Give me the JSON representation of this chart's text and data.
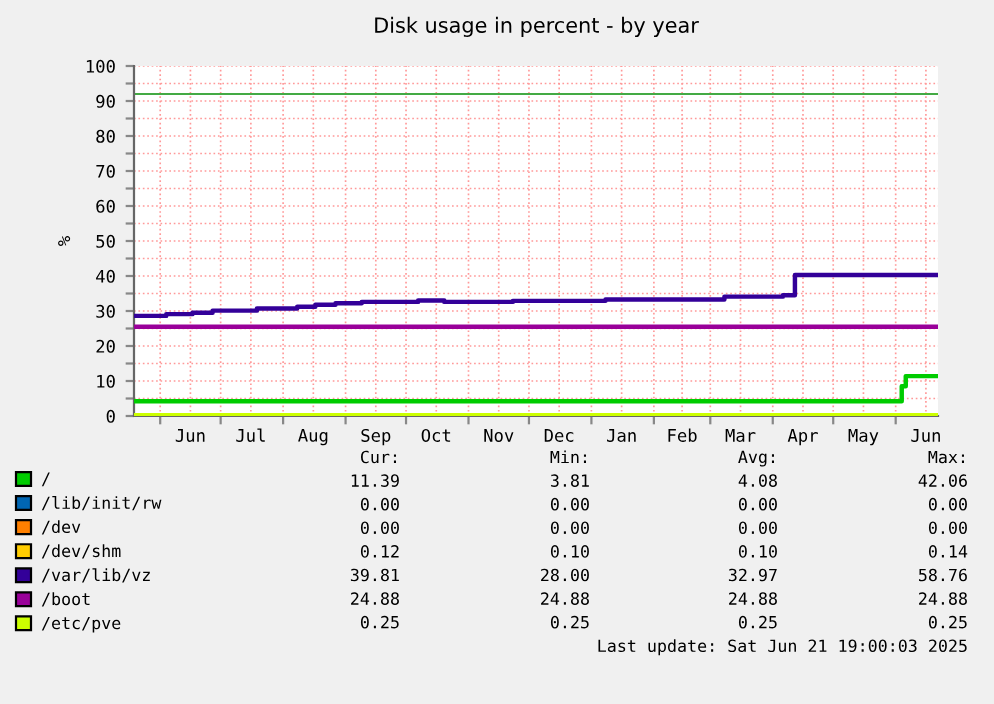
{
  "chart_data": {
    "type": "step",
    "title": "Disk usage in percent - by year",
    "ylabel": "%",
    "xlim": [
      "2024-05-19",
      "2025-06-22"
    ],
    "xticks": [
      {
        "value": "2024-06-01",
        "label": null
      },
      {
        "value": "2024-06-16",
        "label": "Jun"
      },
      {
        "value": "2024-07-01",
        "label": null
      },
      {
        "value": "2024-07-16",
        "label": "Jul"
      },
      {
        "value": "2024-08-01",
        "label": null
      },
      {
        "value": "2024-08-16",
        "label": "Aug"
      },
      {
        "value": "2024-09-01",
        "label": null
      },
      {
        "value": "2024-09-16",
        "label": "Sep"
      },
      {
        "value": "2024-10-01",
        "label": null
      },
      {
        "value": "2024-10-16",
        "label": "Oct"
      },
      {
        "value": "2024-11-01",
        "label": null
      },
      {
        "value": "2024-11-16",
        "label": "Nov"
      },
      {
        "value": "2024-12-01",
        "label": null
      },
      {
        "value": "2024-12-16",
        "label": "Dec"
      },
      {
        "value": "2025-01-01",
        "label": null
      },
      {
        "value": "2025-01-16",
        "label": "Jan"
      },
      {
        "value": "2025-02-01",
        "label": null
      },
      {
        "value": "2025-02-15",
        "label": "Feb"
      },
      {
        "value": "2025-03-01",
        "label": null
      },
      {
        "value": "2025-03-16",
        "label": "Mar"
      },
      {
        "value": "2025-04-01",
        "label": null
      },
      {
        "value": "2025-04-16",
        "label": "Apr"
      },
      {
        "value": "2025-05-01",
        "label": null
      },
      {
        "value": "2025-05-16",
        "label": "May"
      },
      {
        "value": "2025-06-01",
        "label": null
      },
      {
        "value": "2025-06-16",
        "label": "Jun"
      }
    ],
    "ylim": [
      0,
      100
    ],
    "yticks": [
      0,
      {
        "value": 5,
        "label": null
      },
      10,
      {
        "value": 15,
        "label": null
      },
      20,
      {
        "value": 25,
        "label": null
      },
      30,
      {
        "value": 35,
        "label": null
      },
      40,
      {
        "value": 45,
        "label": null
      },
      50,
      {
        "value": 55,
        "label": null
      },
      60,
      {
        "value": 65,
        "label": null
      },
      70,
      {
        "value": 75,
        "label": null
      },
      80,
      {
        "value": 85,
        "label": null
      },
      90,
      {
        "value": 95,
        "label": null
      },
      100
    ],
    "grid": true,
    "legend": "bottom",
    "line_style": "solid",
    "marker": "none",
    "ref_lines": [
      {
        "axis": "y",
        "value": 92,
        "color": "#44aa44"
      }
    ],
    "series": [
      {
        "name": "/",
        "color": "#00cc00",
        "x": [
          "2024-05-19",
          "2025-06-04",
          "2025-06-06",
          "2025-06-21"
        ],
        "values": [
          4.2,
          8.5,
          11.4,
          11.4
        ]
      },
      {
        "name": "/lib/init/rw",
        "color": "#0066b3",
        "values": [
          null
        ]
      },
      {
        "name": "/dev",
        "color": "#ff8000",
        "values": [
          null
        ]
      },
      {
        "name": "/dev/shm",
        "color": "#ffcc00",
        "values": [
          null
        ]
      },
      {
        "name": "/var/lib/vz",
        "color": "#330099",
        "x": [
          "2024-05-19",
          "2024-06-04",
          "2024-06-17",
          "2024-06-27",
          "2024-07-19",
          "2024-08-08",
          "2024-08-17",
          "2024-08-27",
          "2024-09-09",
          "2024-10-07",
          "2024-10-20",
          "2024-11-23",
          "2025-01-08",
          "2025-03-08",
          "2025-04-06",
          "2025-04-12",
          "2025-06-21"
        ],
        "values": [
          28.6,
          29.1,
          29.5,
          30.1,
          30.7,
          31.2,
          31.8,
          32.2,
          32.6,
          33.0,
          32.6,
          32.9,
          33.3,
          34.1,
          34.5,
          40.3,
          40.3
        ]
      },
      {
        "name": "/boot",
        "color": "#990099",
        "x": [
          "2024-05-19",
          "2025-06-21"
        ],
        "values": [
          25.5,
          25.5
        ]
      },
      {
        "name": "/etc/pve",
        "color": "#ccff00",
        "x": [
          "2024-05-19",
          "2025-06-21"
        ],
        "values": [
          0.25,
          0.25
        ]
      }
    ],
    "annotations": [
      "Cur:",
      "Min:",
      "Avg:",
      "Max:",
      "11.39",
      "3.81",
      "4.08",
      "42.06",
      "0.00",
      "0.00",
      "0.00",
      "0.00",
      "0.00",
      "0.00",
      "0.00",
      "0.00",
      "0.12",
      "0.10",
      "0.10",
      "0.14",
      "39.81",
      "28.00",
      "32.97",
      "58.76",
      "24.88",
      "24.88",
      "24.88",
      "24.88",
      "0.25",
      "0.25",
      "0.25",
      "0.25",
      "Last update: Sat Jun 21 19:00:03 2025"
    ]
  }
}
